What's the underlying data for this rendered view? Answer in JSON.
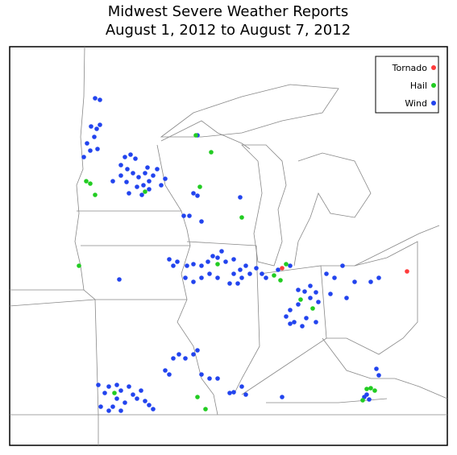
{
  "title": [
    "Midwest Severe Weather Reports",
    "August 1, 2012 to August 7, 2012"
  ],
  "legend": [
    {
      "label": "Tornado",
      "color": "#ff3b3b"
    },
    {
      "label": "Hail",
      "color": "#22cc22"
    },
    {
      "label": "Wind",
      "color": "#2244ee"
    }
  ]
}
